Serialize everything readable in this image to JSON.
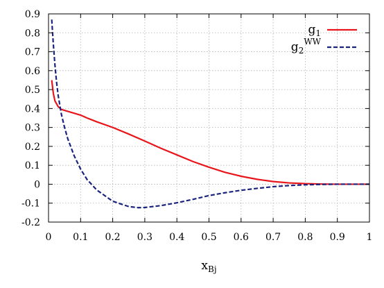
{
  "chart_data": {
    "type": "line",
    "title": "",
    "xlabel": "x",
    "xlabel_sub": "Bj",
    "ylabel": "",
    "xlim": [
      0,
      1
    ],
    "ylim": [
      -0.2,
      0.9
    ],
    "grid": true,
    "legend_position": "top-right",
    "x_ticks": [
      0,
      0.1,
      0.2,
      0.3,
      0.4,
      0.5,
      0.6,
      0.7,
      0.8,
      0.9,
      1
    ],
    "x_tick_labels": [
      "0",
      "0.1",
      "0.2",
      "0.3",
      "0.4",
      "0.5",
      "0.6",
      "0.7",
      "0.8",
      "0.9",
      "1"
    ],
    "y_ticks": [
      -0.2,
      -0.1,
      0,
      0.1,
      0.2,
      0.3,
      0.4,
      0.5,
      0.6,
      0.7,
      0.8,
      0.9
    ],
    "y_tick_labels": [
      "-0.2",
      "-0.1",
      "0",
      "0.1",
      "0.2",
      "0.3",
      "0.4",
      "0.5",
      "0.6",
      "0.7",
      "0.8",
      "0.9"
    ],
    "series": [
      {
        "name_base": "g",
        "name_sub": "1",
        "name_sup": "",
        "color": "#e8151b",
        "dash": "solid",
        "x": [
          0.01,
          0.015,
          0.02,
          0.03,
          0.04,
          0.06,
          0.08,
          0.1,
          0.12,
          0.15,
          0.2,
          0.25,
          0.3,
          0.35,
          0.4,
          0.45,
          0.5,
          0.55,
          0.6,
          0.65,
          0.7,
          0.75,
          0.8,
          0.85,
          0.9,
          0.95,
          1.0
        ],
        "y": [
          0.55,
          0.48,
          0.44,
          0.41,
          0.395,
          0.385,
          0.375,
          0.365,
          0.35,
          0.33,
          0.3,
          0.265,
          0.228,
          0.19,
          0.155,
          0.12,
          0.09,
          0.063,
          0.042,
          0.026,
          0.014,
          0.007,
          0.003,
          0.001,
          0.0,
          0.0,
          0.0
        ]
      },
      {
        "name_base": "g",
        "name_sub": "2",
        "name_sup": "WW",
        "color": "#1a237e",
        "dash": "dashed",
        "x": [
          0.01,
          0.015,
          0.02,
          0.025,
          0.03,
          0.04,
          0.05,
          0.06,
          0.08,
          0.1,
          0.12,
          0.15,
          0.2,
          0.25,
          0.28,
          0.3,
          0.35,
          0.4,
          0.45,
          0.5,
          0.55,
          0.6,
          0.65,
          0.7,
          0.75,
          0.8,
          0.85,
          0.9,
          0.95,
          1.0
        ],
        "y": [
          0.87,
          0.74,
          0.63,
          0.54,
          0.47,
          0.37,
          0.3,
          0.24,
          0.15,
          0.08,
          0.025,
          -0.03,
          -0.09,
          -0.118,
          -0.124,
          -0.123,
          -0.113,
          -0.098,
          -0.08,
          -0.06,
          -0.045,
          -0.032,
          -0.022,
          -0.013,
          -0.007,
          -0.003,
          -0.001,
          0.0,
          0.0,
          0.0
        ]
      }
    ]
  }
}
